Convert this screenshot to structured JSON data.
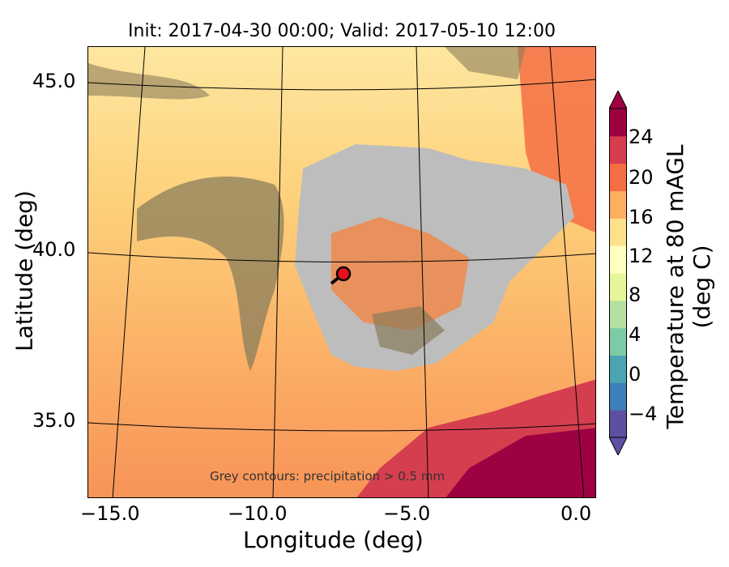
{
  "title": "Init: 2017-04-30 00:00; Valid: 2017-05-10 12:00",
  "xlabel": "Longitude (deg)",
  "ylabel": "Latitude (deg)",
  "x_ticks": [
    "−15.0",
    "−10.0",
    "−5.0",
    "0.0"
  ],
  "y_ticks": [
    "45.0",
    "40.0",
    "35.0"
  ],
  "colorbar": {
    "label": "Temperature at 80 mAGL (deg C)",
    "ticks": [
      "24",
      "20",
      "16",
      "12",
      "8",
      "4",
      "0",
      "−4"
    ],
    "colors": [
      "#5e4fa2",
      "#3d7fb8",
      "#4aa5b0",
      "#7ccba4",
      "#b3e0a2",
      "#e6f598",
      "#fffebe",
      "#fee08b",
      "#fdae61",
      "#f46d43",
      "#d53e4f",
      "#9e0142"
    ]
  },
  "annotation": "Grey contours: precipitation > 0.5 mm",
  "marker": {
    "lon": -7.7,
    "lat": 39.3,
    "color": "#e8101a"
  }
}
